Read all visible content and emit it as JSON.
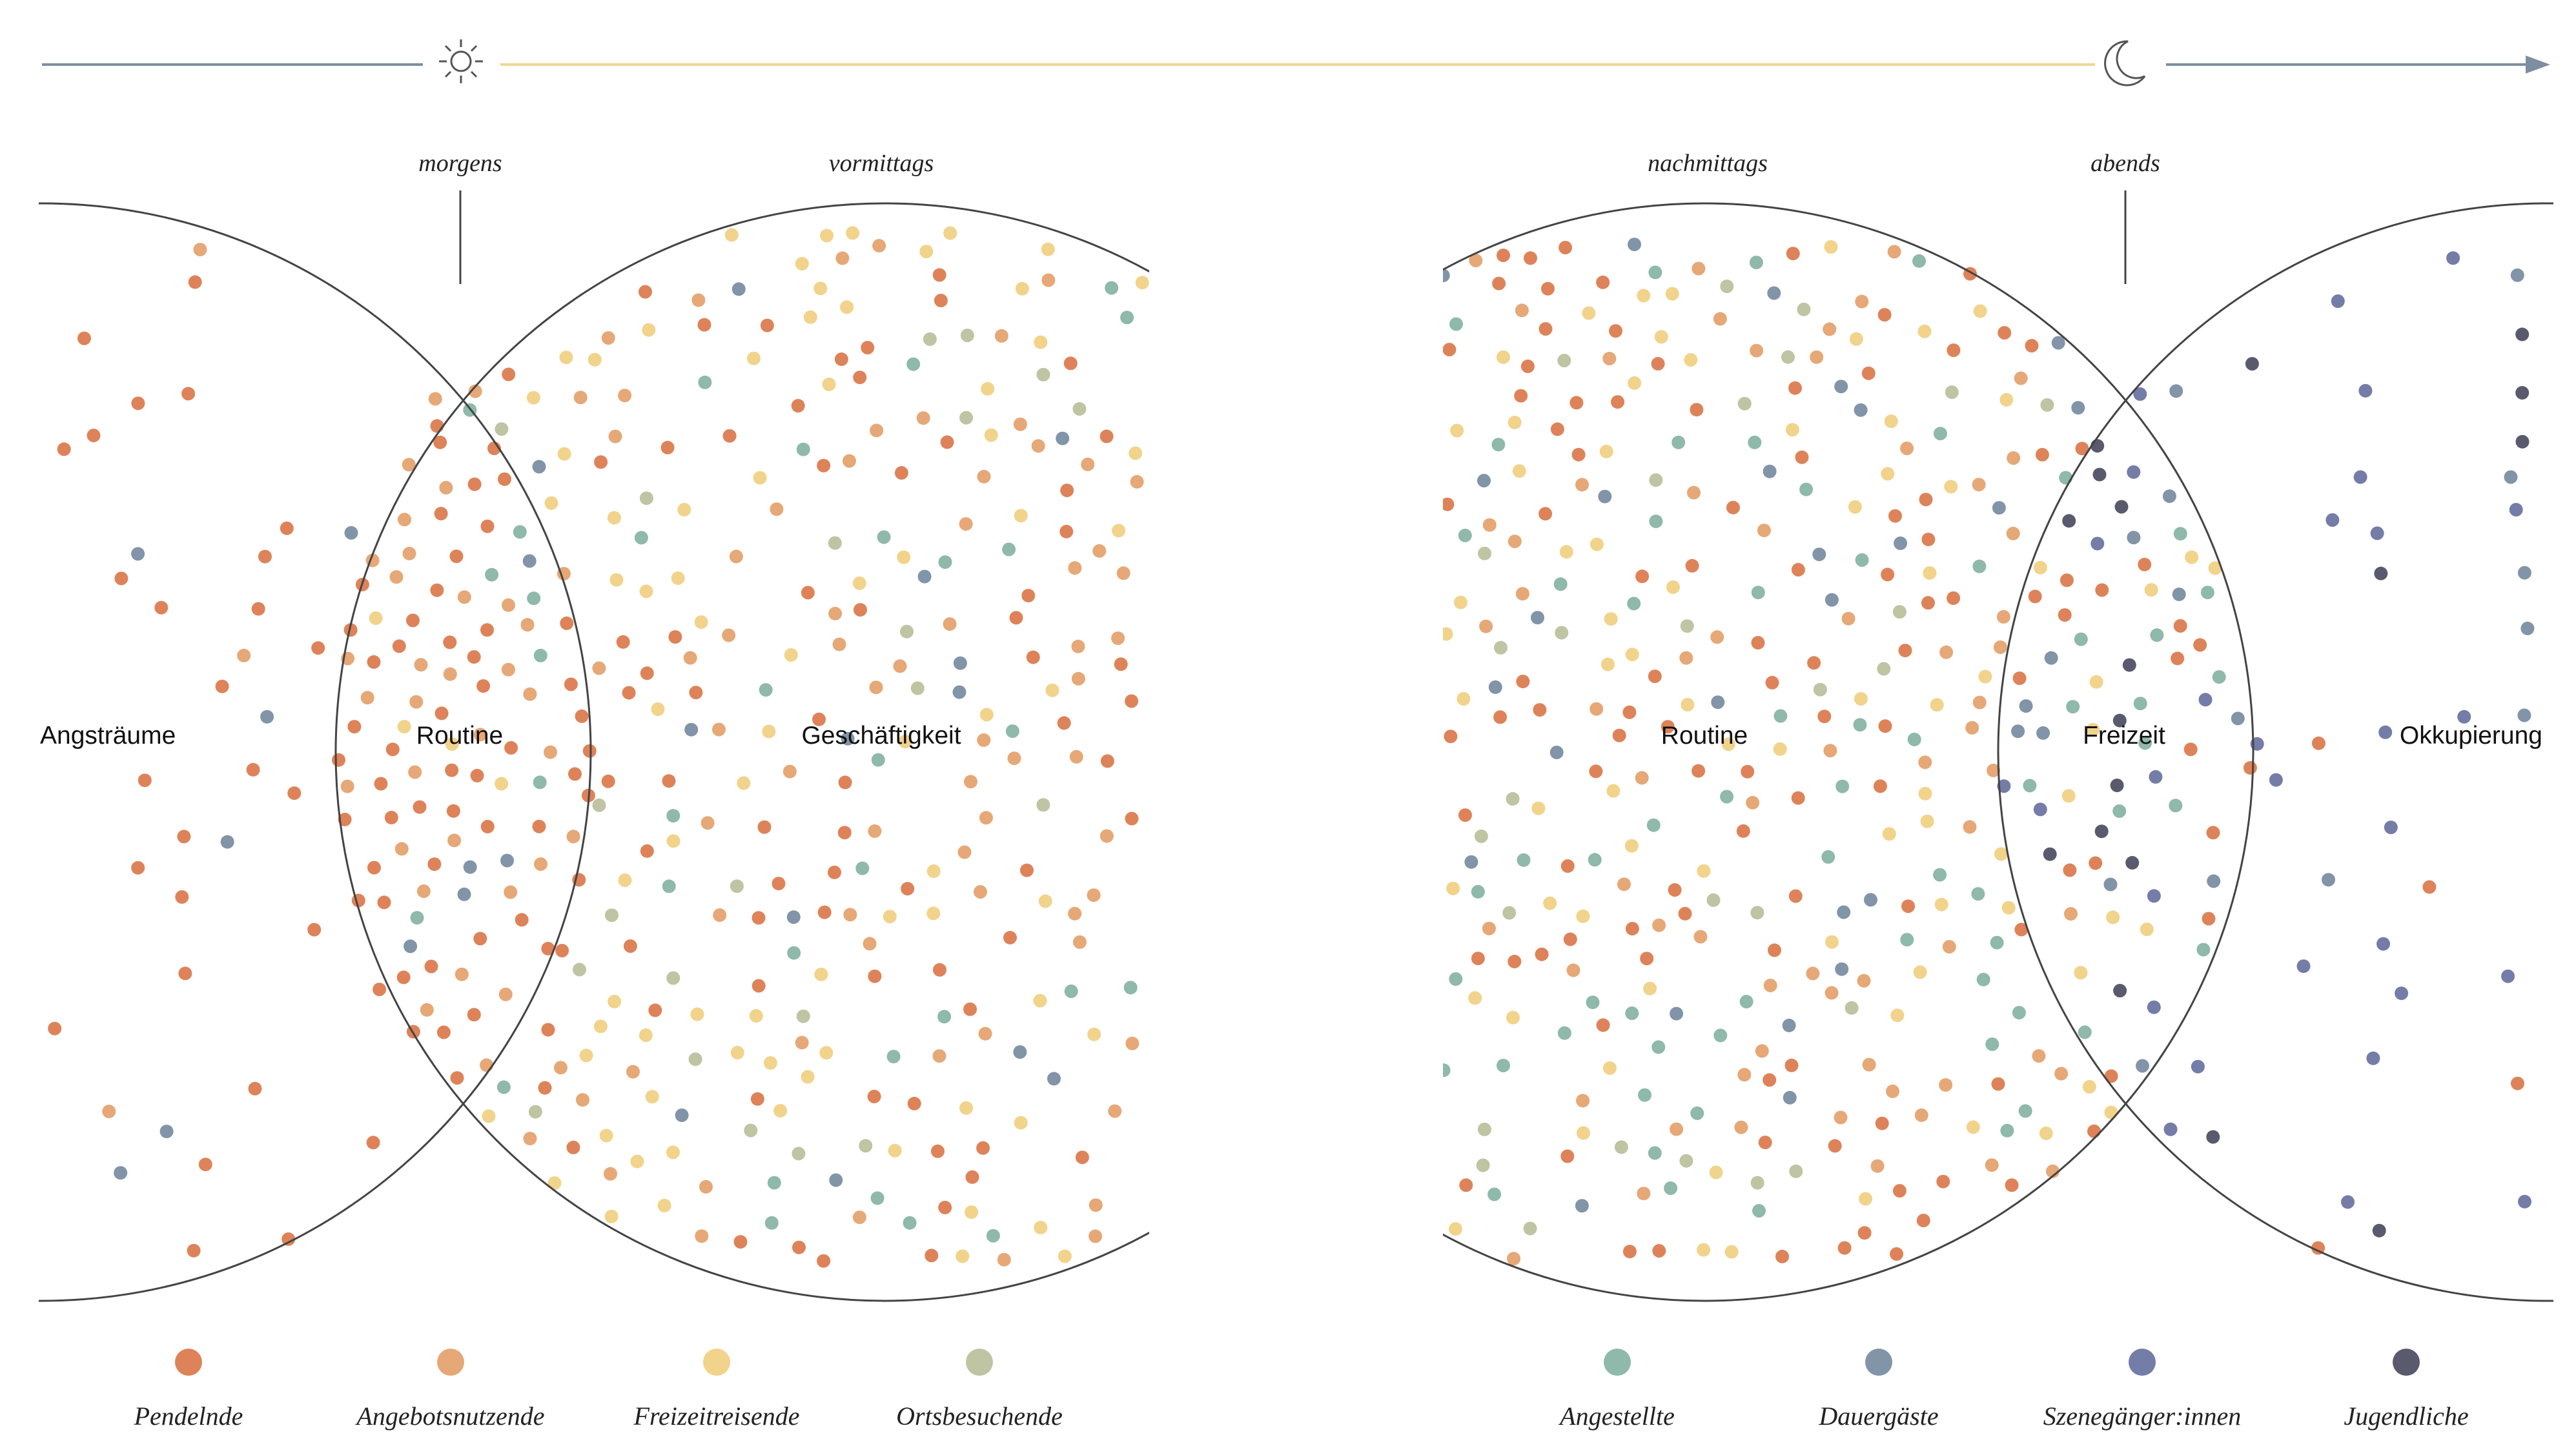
{
  "timeline": {
    "sun_icon": "sun-icon",
    "moon_icon": "moon-icon",
    "colors": {
      "line": "#7e8ea0",
      "daylight": "#efd694"
    }
  },
  "time_labels": {
    "morgens": "morgens",
    "vormittags": "vormittags",
    "nachmittags": "nachmittags",
    "abends": "abends"
  },
  "zones": {
    "angstraeume": "Angsträume",
    "routine_left": "Routine",
    "geschaeftigkeit": "Geschäftigkeit",
    "routine_right": "Routine",
    "freizeit": "Freizeit",
    "okkupierung": "Okkupierung"
  },
  "legend": [
    {
      "key": "pendelnde",
      "label": "Pendelnde",
      "color": "#de8359"
    },
    {
      "key": "angebotsnutzende",
      "label": "Angebotsnutzende",
      "color": "#e6a877"
    },
    {
      "key": "freizeitreisende",
      "label": "Freizeitreisende",
      "color": "#f1d38b"
    },
    {
      "key": "ortsbesuchende",
      "label": "Ortsbesuchende",
      "color": "#bfc4a3"
    },
    {
      "key": "angestellte",
      "label": "Angestellte",
      "color": "#8fb9aa"
    },
    {
      "key": "dauergaeste",
      "label": "Dauergäste",
      "color": "#8294a8"
    },
    {
      "key": "szenegaenger",
      "label": "Szenegänger:innen",
      "color": "#747ca8"
    },
    {
      "key": "jugendliche",
      "label": "Jugendliche",
      "color": "#5a5a6e"
    }
  ]
}
